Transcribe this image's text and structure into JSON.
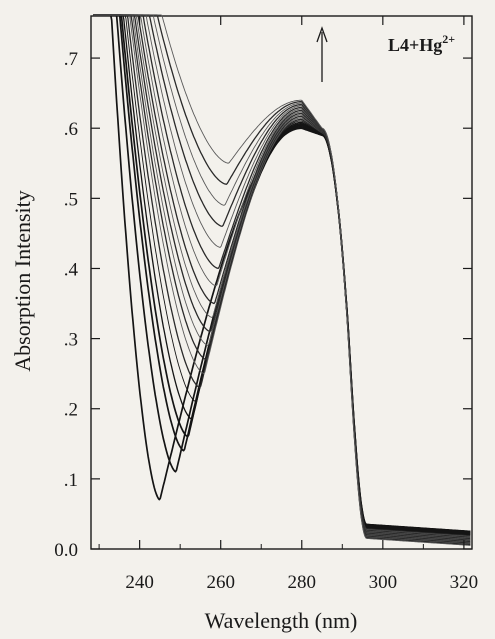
{
  "chart_data": {
    "type": "line",
    "xlabel": "Wavelength (nm)",
    "ylabel": "Absorption Intensity",
    "xlim": [
      228,
      322
    ],
    "ylim": [
      0,
      0.76
    ],
    "x_ticks": [
      240,
      260,
      280,
      300,
      320
    ],
    "x_tick_labels": [
      "240",
      "260",
      "280",
      "300",
      "320"
    ],
    "y_ticks": [
      0,
      0.1,
      0.2,
      0.3,
      0.4,
      0.5,
      0.6,
      0.7
    ],
    "y_tick_labels": [
      "0.0",
      ".1",
      ".2",
      ".3",
      ".4",
      ".5",
      ".6",
      ".7"
    ],
    "grid": false,
    "annotation": {
      "label": "L4+Hg",
      "superscript": "2+",
      "arrow": "up"
    },
    "series_minima": [
      {
        "x": 245,
        "y": 0.07
      },
      {
        "x": 249,
        "y": 0.11
      },
      {
        "x": 251,
        "y": 0.14
      },
      {
        "x": 252,
        "y": 0.16
      },
      {
        "x": 253,
        "y": 0.185
      },
      {
        "x": 254,
        "y": 0.21
      },
      {
        "x": 255,
        "y": 0.23
      },
      {
        "x": 256,
        "y": 0.25
      },
      {
        "x": 256.5,
        "y": 0.27
      },
      {
        "x": 257,
        "y": 0.29
      },
      {
        "x": 257.5,
        "y": 0.31
      },
      {
        "x": 258,
        "y": 0.33
      },
      {
        "x": 258.5,
        "y": 0.35
      },
      {
        "x": 259,
        "y": 0.375
      },
      {
        "x": 259.5,
        "y": 0.4
      },
      {
        "x": 260,
        "y": 0.43
      },
      {
        "x": 260.5,
        "y": 0.46
      },
      {
        "x": 261,
        "y": 0.49
      },
      {
        "x": 261.5,
        "y": 0.52
      },
      {
        "x": 262,
        "y": 0.55
      }
    ],
    "peak": {
      "x": 280,
      "y_range": [
        0.6,
        0.64
      ]
    },
    "shoulder": {
      "x": 285,
      "y": 0.59
    },
    "edge": {
      "x_half": 291.5,
      "x_zero": 296
    },
    "tail_y": [
      0.005,
      0.025
    ]
  }
}
